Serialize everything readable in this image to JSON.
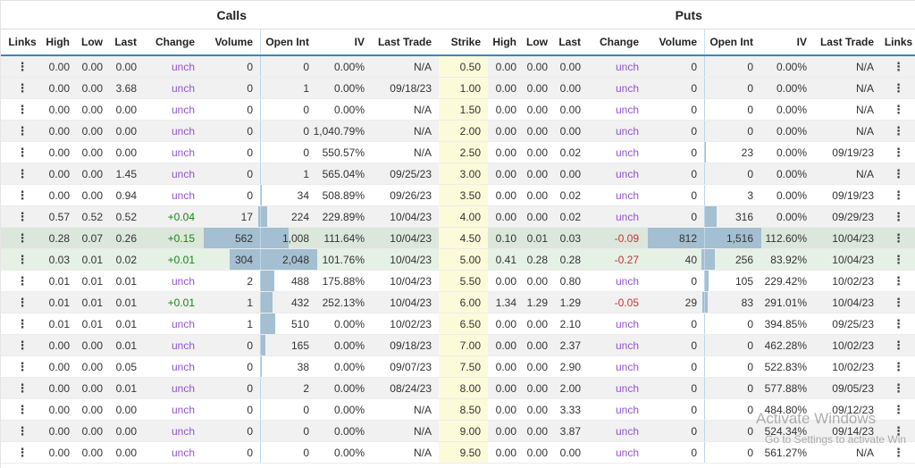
{
  "titles": {
    "calls": "Calls",
    "puts": "Puts"
  },
  "columns": {
    "links": "Links",
    "high": "High",
    "low": "Low",
    "last": "Last",
    "change": "Change",
    "volume": "Volume",
    "open_int": "Open Int",
    "iv": "IV",
    "last_trade": "Last Trade",
    "strike": "Strike"
  },
  "links_icon": "⋮",
  "colors": {
    "header_underline": "#3388c9",
    "unchanged_text": "#9454d4",
    "up_text": "#148714",
    "down_text": "#cc3333",
    "strike_bg": "#fbfbda",
    "row_alt_bg": "#f1f1f1",
    "highlight_row_dark": "#dce7dc",
    "highlight_row_light": "#e4f1e4",
    "volume_bar": "#a3bfd1",
    "boundary_line": "#bdd5e7"
  },
  "watermark": {
    "line1": "Activate Windows",
    "line2": "Go to Settings to activate Win"
  },
  "rows": [
    {
      "strike": "0.50",
      "bg": "gray",
      "calls": {
        "high": "0.00",
        "low": "0.00",
        "last": "0.00",
        "change": "unch",
        "volume": "0",
        "open_int": "0",
        "iv": "0.00%",
        "last_trade": "N/A"
      },
      "puts": {
        "high": "0.00",
        "low": "0.00",
        "last": "0.00",
        "change": "unch",
        "volume": "0",
        "open_int": "0",
        "iv": "0.00%",
        "last_trade": "N/A"
      }
    },
    {
      "strike": "1.00",
      "bg": "gray",
      "calls": {
        "high": "0.00",
        "low": "0.00",
        "last": "3.68",
        "change": "unch",
        "volume": "0",
        "open_int": "1",
        "iv": "0.00%",
        "last_trade": "09/18/23"
      },
      "puts": {
        "high": "0.00",
        "low": "0.00",
        "last": "0.00",
        "change": "unch",
        "volume": "0",
        "open_int": "0",
        "iv": "0.00%",
        "last_trade": "N/A"
      }
    },
    {
      "strike": "1.50",
      "bg": "white",
      "calls": {
        "high": "0.00",
        "low": "0.00",
        "last": "0.00",
        "change": "unch",
        "volume": "0",
        "open_int": "0",
        "iv": "0.00%",
        "last_trade": "N/A"
      },
      "puts": {
        "high": "0.00",
        "low": "0.00",
        "last": "0.00",
        "change": "unch",
        "volume": "0",
        "open_int": "0",
        "iv": "0.00%",
        "last_trade": "N/A"
      }
    },
    {
      "strike": "2.00",
      "bg": "gray",
      "calls": {
        "high": "0.00",
        "low": "0.00",
        "last": "0.00",
        "change": "unch",
        "volume": "0",
        "open_int": "0",
        "iv": "1,040.79%",
        "last_trade": "N/A"
      },
      "puts": {
        "high": "0.00",
        "low": "0.00",
        "last": "0.00",
        "change": "unch",
        "volume": "0",
        "open_int": "0",
        "iv": "0.00%",
        "last_trade": "N/A"
      }
    },
    {
      "strike": "2.50",
      "bg": "white",
      "calls": {
        "high": "0.00",
        "low": "0.00",
        "last": "0.00",
        "change": "unch",
        "volume": "0",
        "open_int": "0",
        "iv": "550.57%",
        "last_trade": "N/A"
      },
      "puts": {
        "high": "0.00",
        "low": "0.00",
        "last": "0.02",
        "change": "unch",
        "volume": "0",
        "open_int": "23",
        "iv": "0.00%",
        "last_trade": "09/19/23"
      }
    },
    {
      "strike": "3.00",
      "bg": "gray",
      "calls": {
        "high": "0.00",
        "low": "0.00",
        "last": "1.45",
        "change": "unch",
        "volume": "0",
        "open_int": "1",
        "iv": "565.04%",
        "last_trade": "09/25/23"
      },
      "puts": {
        "high": "0.00",
        "low": "0.00",
        "last": "0.00",
        "change": "unch",
        "volume": "0",
        "open_int": "0",
        "iv": "0.00%",
        "last_trade": "N/A"
      }
    },
    {
      "strike": "3.50",
      "bg": "white",
      "calls": {
        "high": "0.00",
        "low": "0.00",
        "last": "0.94",
        "change": "unch",
        "volume": "0",
        "open_int": "34",
        "iv": "508.89%",
        "last_trade": "09/26/23"
      },
      "puts": {
        "high": "0.00",
        "low": "0.00",
        "last": "0.02",
        "change": "unch",
        "volume": "0",
        "open_int": "3",
        "iv": "0.00%",
        "last_trade": "09/19/23"
      }
    },
    {
      "strike": "4.00",
      "bg": "gray",
      "calls": {
        "high": "0.57",
        "low": "0.52",
        "last": "0.52",
        "change": "+0.04",
        "volume": "17",
        "open_int": "224",
        "iv": "229.89%",
        "last_trade": "10/04/23"
      },
      "puts": {
        "high": "0.00",
        "low": "0.00",
        "last": "0.02",
        "change": "unch",
        "volume": "0",
        "open_int": "316",
        "iv": "0.00%",
        "last_trade": "09/29/23"
      }
    },
    {
      "strike": "4.50",
      "bg": "greenA",
      "calls": {
        "high": "0.28",
        "low": "0.07",
        "last": "0.26",
        "change": "+0.15",
        "volume": "562",
        "open_int": "1,008",
        "iv": "111.64%",
        "last_trade": "10/04/23"
      },
      "puts": {
        "high": "0.10",
        "low": "0.01",
        "last": "0.03",
        "change": "-0.09",
        "volume": "812",
        "open_int": "1,516",
        "iv": "112.60%",
        "last_trade": "10/04/23"
      }
    },
    {
      "strike": "5.00",
      "bg": "greenB",
      "calls": {
        "high": "0.03",
        "low": "0.01",
        "last": "0.02",
        "change": "+0.01",
        "volume": "304",
        "open_int": "2,048",
        "iv": "101.76%",
        "last_trade": "10/04/23"
      },
      "puts": {
        "high": "0.41",
        "low": "0.28",
        "last": "0.28",
        "change": "-0.27",
        "volume": "40",
        "open_int": "256",
        "iv": "83.92%",
        "last_trade": "10/04/23"
      }
    },
    {
      "strike": "5.50",
      "bg": "white",
      "calls": {
        "high": "0.01",
        "low": "0.01",
        "last": "0.01",
        "change": "unch",
        "volume": "2",
        "open_int": "488",
        "iv": "175.88%",
        "last_trade": "10/04/23"
      },
      "puts": {
        "high": "0.00",
        "low": "0.00",
        "last": "0.80",
        "change": "unch",
        "volume": "0",
        "open_int": "105",
        "iv": "229.42%",
        "last_trade": "10/02/23"
      }
    },
    {
      "strike": "6.00",
      "bg": "gray",
      "calls": {
        "high": "0.01",
        "low": "0.01",
        "last": "0.01",
        "change": "+0.01",
        "volume": "1",
        "open_int": "432",
        "iv": "252.13%",
        "last_trade": "10/04/23"
      },
      "puts": {
        "high": "1.34",
        "low": "1.29",
        "last": "1.29",
        "change": "-0.05",
        "volume": "29",
        "open_int": "83",
        "iv": "291.01%",
        "last_trade": "10/04/23"
      }
    },
    {
      "strike": "6.50",
      "bg": "white",
      "calls": {
        "high": "0.01",
        "low": "0.01",
        "last": "0.01",
        "change": "unch",
        "volume": "1",
        "open_int": "510",
        "iv": "0.00%",
        "last_trade": "10/02/23"
      },
      "puts": {
        "high": "0.00",
        "low": "0.00",
        "last": "2.10",
        "change": "unch",
        "volume": "0",
        "open_int": "0",
        "iv": "394.85%",
        "last_trade": "09/25/23"
      }
    },
    {
      "strike": "7.00",
      "bg": "gray",
      "calls": {
        "high": "0.00",
        "low": "0.00",
        "last": "0.01",
        "change": "unch",
        "volume": "0",
        "open_int": "165",
        "iv": "0.00%",
        "last_trade": "09/18/23"
      },
      "puts": {
        "high": "0.00",
        "low": "0.00",
        "last": "2.37",
        "change": "unch",
        "volume": "0",
        "open_int": "0",
        "iv": "462.28%",
        "last_trade": "10/02/23"
      }
    },
    {
      "strike": "7.50",
      "bg": "white",
      "calls": {
        "high": "0.00",
        "low": "0.00",
        "last": "0.05",
        "change": "unch",
        "volume": "0",
        "open_int": "38",
        "iv": "0.00%",
        "last_trade": "09/07/23"
      },
      "puts": {
        "high": "0.00",
        "low": "0.00",
        "last": "2.90",
        "change": "unch",
        "volume": "0",
        "open_int": "0",
        "iv": "522.83%",
        "last_trade": "10/02/23"
      }
    },
    {
      "strike": "8.00",
      "bg": "gray",
      "calls": {
        "high": "0.00",
        "low": "0.00",
        "last": "0.01",
        "change": "unch",
        "volume": "0",
        "open_int": "2",
        "iv": "0.00%",
        "last_trade": "08/24/23"
      },
      "puts": {
        "high": "0.00",
        "low": "0.00",
        "last": "2.00",
        "change": "unch",
        "volume": "0",
        "open_int": "0",
        "iv": "577.88%",
        "last_trade": "09/05/23"
      }
    },
    {
      "strike": "8.50",
      "bg": "white",
      "calls": {
        "high": "0.00",
        "low": "0.00",
        "last": "0.00",
        "change": "unch",
        "volume": "0",
        "open_int": "0",
        "iv": "0.00%",
        "last_trade": "N/A"
      },
      "puts": {
        "high": "0.00",
        "low": "0.00",
        "last": "3.33",
        "change": "unch",
        "volume": "0",
        "open_int": "0",
        "iv": "484.80%",
        "last_trade": "09/12/23"
      }
    },
    {
      "strike": "9.00",
      "bg": "gray",
      "calls": {
        "high": "0.00",
        "low": "0.00",
        "last": "0.00",
        "change": "unch",
        "volume": "0",
        "open_int": "0",
        "iv": "0.00%",
        "last_trade": "N/A"
      },
      "puts": {
        "high": "0.00",
        "low": "0.00",
        "last": "3.87",
        "change": "unch",
        "volume": "0",
        "open_int": "0",
        "iv": "524.34%",
        "last_trade": "09/14/23"
      }
    },
    {
      "strike": "9.50",
      "bg": "white",
      "calls": {
        "high": "0.00",
        "low": "0.00",
        "last": "0.00",
        "change": "unch",
        "volume": "0",
        "open_int": "0",
        "iv": "0.00%",
        "last_trade": "N/A"
      },
      "puts": {
        "high": "0.00",
        "low": "0.00",
        "last": "0.00",
        "change": "unch",
        "volume": "0",
        "open_int": "0",
        "iv": "561.27%",
        "last_trade": "N/A"
      }
    }
  ]
}
